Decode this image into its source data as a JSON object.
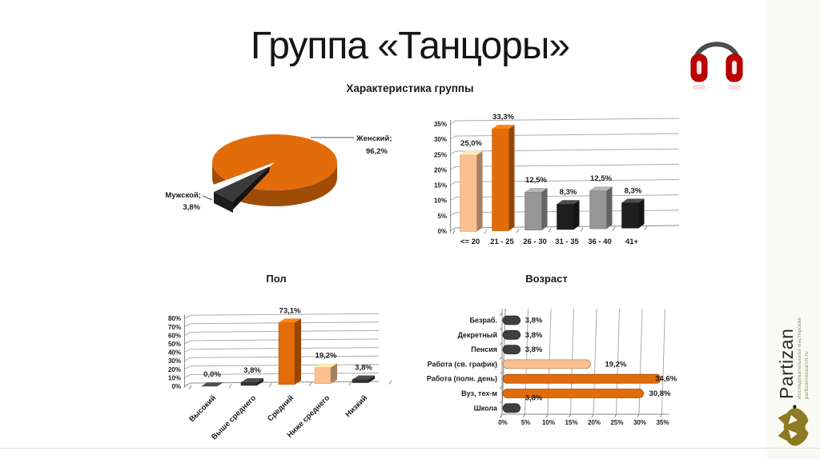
{
  "slide": {
    "title": "Группа «Танцоры»",
    "subtitle": "Характеристика группы"
  },
  "chart_data": [
    {
      "id": "gender_pie",
      "type": "pie",
      "title": "Пол",
      "style": "3d-exploded-pie",
      "slices": [
        {
          "name": "Женский",
          "value": 96.2,
          "label_line1": "Женский;",
          "label_line2": "96,2%",
          "color": "#E36C0A"
        },
        {
          "name": "Мужской",
          "value": 3.8,
          "label_line1": "Мужской;",
          "label_line2": "3,8%",
          "color": "#2E2E2E"
        }
      ]
    },
    {
      "id": "age",
      "type": "bar",
      "title": "Возраст",
      "style": "3d-column",
      "categories": [
        "<= 20",
        "21 - 25",
        "26 - 30",
        "31 - 35",
        "36 - 40",
        "41+"
      ],
      "values": [
        25.0,
        33.3,
        12.5,
        8.3,
        12.5,
        8.3
      ],
      "value_labels": [
        "25,0%",
        "33,3%",
        "12,5%",
        "8,3%",
        "12,5%",
        "8,3%"
      ],
      "colors": [
        "#FAC090",
        "#E36C0A",
        "#969696",
        "#1F1F1F",
        "#969696",
        "#1F1F1F"
      ],
      "ylim": [
        0,
        35
      ],
      "ystep": 5,
      "grid": true,
      "legend": "none"
    },
    {
      "id": "education",
      "type": "bar",
      "title": "",
      "style": "3d-column",
      "categories": [
        "Высокий",
        "Выше среднего",
        "Средний",
        "Ниже среднего",
        "Низкий"
      ],
      "values": [
        0.0,
        3.8,
        73.1,
        19.2,
        3.8
      ],
      "value_labels": [
        "0,0%",
        "3,8%",
        "73,1%",
        "19,2%",
        "3,8%"
      ],
      "colors": [
        "#333333",
        "#333333",
        "#E36C0A",
        "#FAC090",
        "#333333"
      ],
      "ylim": [
        0,
        80
      ],
      "ystep": 10,
      "grid": true,
      "legend": "none",
      "category_rotation": -45
    },
    {
      "id": "employment",
      "type": "bar",
      "orientation": "horizontal",
      "title": "",
      "style": "rounded-hbar",
      "categories": [
        "Безраб.",
        "Декретный",
        "Пенсия",
        "Работа (св. график)",
        "Работа (полн. день)",
        "Вуз, тех-м",
        "Школа"
      ],
      "values": [
        3.8,
        3.8,
        3.8,
        19.2,
        34.6,
        30.8,
        3.8
      ],
      "value_labels": [
        "3,8%",
        "3,8%",
        "3,8%",
        "19,2%",
        "34,6%",
        "30,8%",
        "3,8%"
      ],
      "colors": [
        "#3F3F3F",
        "#3F3F3F",
        "#3F3F3F",
        "#FAC090",
        "#E36C0A",
        "#E36C0A",
        "#3F3F3F"
      ],
      "label_offsets": [
        {
          "dx": 6
        },
        {
          "dx": 6
        },
        {
          "dx": 6
        },
        {
          "dx": 18
        },
        {
          "dx": -7
        },
        {
          "dx": 7
        },
        {
          "dx": 6,
          "dy": -13
        }
      ],
      "xlim": [
        0,
        35
      ],
      "xstep": 5,
      "grid": true,
      "legend": "none"
    }
  ],
  "logo": {
    "brand": "Partizan",
    "tagline": "Исследовательская мастерская",
    "url": "partizanresearch.ru"
  },
  "icons": {
    "headphones": "headphones-icon",
    "mask": "partizan-mask-icon"
  },
  "colors": {
    "orange": "#E36C0A",
    "peach": "#FAC090",
    "gray": "#969696",
    "black": "#1F1F1F",
    "dark_bar": "#3F3F3F",
    "grid": "#ABABAB",
    "axis": "#8A8A8A",
    "text": "#1A1A1A",
    "logo_olive": "#8C7B22",
    "headphone_red": "#C00000",
    "strip_bg": "#FAFAF4",
    "edge": "#DCDCDC"
  }
}
